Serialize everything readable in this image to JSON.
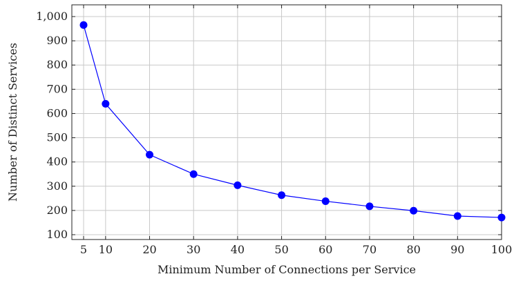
{
  "chart_data": {
    "type": "line",
    "xlabel": "Minimum Number of Connections per Service",
    "ylabel": "Number of Distinct Services",
    "xlim": [
      5,
      100
    ],
    "ylim": [
      100,
      1000
    ],
    "x_ticks": [
      5,
      10,
      20,
      30,
      40,
      50,
      60,
      70,
      80,
      90,
      100
    ],
    "x_tick_labels": [
      "5",
      "10",
      "20",
      "30",
      "40",
      "50",
      "60",
      "70",
      "80",
      "90",
      "100"
    ],
    "y_ticks": [
      100,
      200,
      300,
      400,
      500,
      600,
      700,
      800,
      900,
      1000
    ],
    "y_tick_labels": [
      "100",
      "200",
      "300",
      "400",
      "500",
      "600",
      "700",
      "800",
      "900",
      "1,000"
    ],
    "grid": true,
    "series": [
      {
        "color": "#0000ff",
        "marker": "circle",
        "x": [
          5,
          10,
          20,
          30,
          40,
          50,
          60,
          70,
          80,
          90,
          100
        ],
        "y": [
          965,
          640,
          430,
          350,
          304,
          263,
          238,
          217,
          199,
          177,
          171
        ]
      }
    ]
  }
}
